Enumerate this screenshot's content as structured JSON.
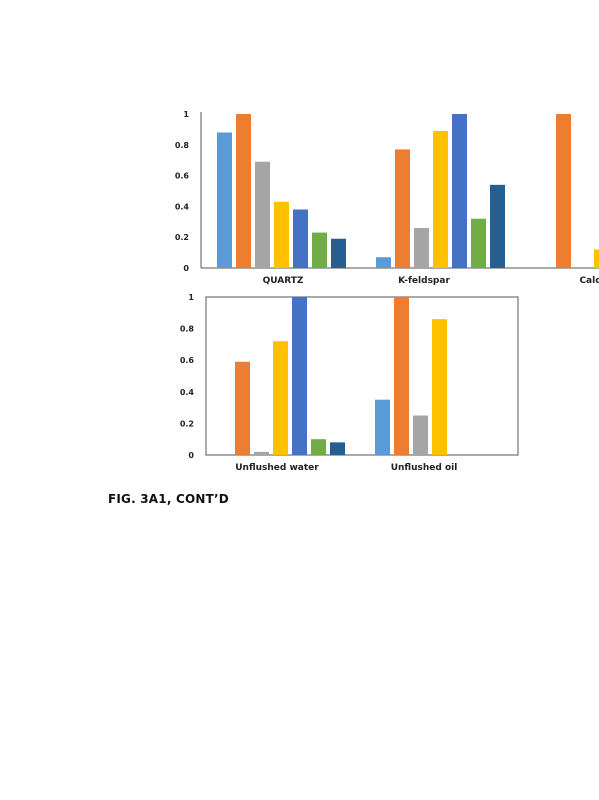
{
  "caption": "FIG. 3A1, CONT’D",
  "chart_data": [
    {
      "type": "bar",
      "y_ticks": [
        "1",
        "0.8",
        "0.6",
        "0.4",
        "0.2",
        "0"
      ],
      "ylim": [
        0,
        1
      ],
      "grid": false,
      "categories": [
        "QUARTZ",
        "K-feldspar",
        "Calc"
      ],
      "series": [
        {
          "color": "#5b9bd5",
          "values": [
            0.88,
            0.07,
            0.0
          ]
        },
        {
          "color": "#ed7d31",
          "values": [
            1.0,
            0.77,
            1.0
          ]
        },
        {
          "color": "#a5a5a5",
          "values": [
            0.69,
            0.26,
            0.0
          ]
        },
        {
          "color": "#ffc000",
          "values": [
            0.43,
            0.89,
            0.12
          ]
        },
        {
          "color": "#4472c4",
          "values": [
            0.38,
            1.0,
            null
          ]
        },
        {
          "color": "#70ad47",
          "values": [
            0.23,
            0.32,
            null
          ]
        },
        {
          "color": "#255e91",
          "values": [
            0.19,
            0.54,
            null
          ]
        }
      ]
    },
    {
      "type": "bar",
      "y_ticks": [
        "1",
        "0.8",
        "0.6",
        "0.4",
        "0.2",
        "0"
      ],
      "ylim": [
        0,
        1
      ],
      "grid": false,
      "categories": [
        "Unflushed water",
        "Unflushed oil"
      ],
      "series": [
        {
          "color": "#5b9bd5",
          "values": [
            0.0,
            0.35
          ]
        },
        {
          "color": "#ed7d31",
          "values": [
            0.59,
            1.0
          ]
        },
        {
          "color": "#a5a5a5",
          "values": [
            0.02,
            0.25
          ]
        },
        {
          "color": "#ffc000",
          "values": [
            0.72,
            0.86
          ]
        },
        {
          "color": "#4472c4",
          "values": [
            1.0,
            0.0
          ]
        },
        {
          "color": "#70ad47",
          "values": [
            0.1,
            0.0
          ]
        },
        {
          "color": "#255e91",
          "values": [
            0.08,
            0.0
          ]
        }
      ]
    }
  ]
}
